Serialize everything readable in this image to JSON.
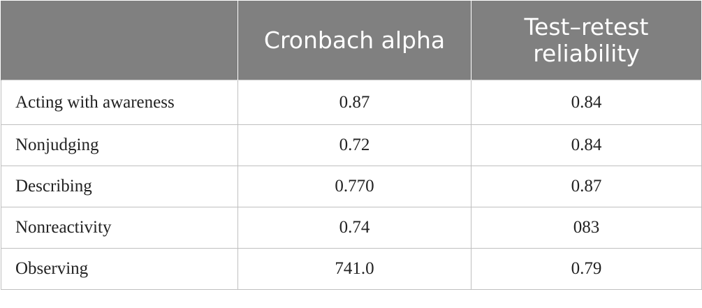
{
  "table": {
    "headers": [
      "",
      "Cronbach alpha",
      "Test–retest reliability"
    ],
    "rows": [
      {
        "label": "Acting with awareness",
        "cronbach_alpha": "0.87",
        "test_retest": "0.84"
      },
      {
        "label": "Nonjudging",
        "cronbach_alpha": "0.72",
        "test_retest": "0.84"
      },
      {
        "label": "Describing",
        "cronbach_alpha": "0.770",
        "test_retest": "0.87"
      },
      {
        "label": "Nonreactivity",
        "cronbach_alpha": "0.74",
        "test_retest": "083"
      },
      {
        "label": "Observing",
        "cronbach_alpha": "741.0",
        "test_retest": "0.79"
      }
    ],
    "colors": {
      "header_bg": "#808080",
      "header_text": "#ffffff",
      "grid": "#bfbfbf",
      "body_text": "#222222"
    }
  }
}
